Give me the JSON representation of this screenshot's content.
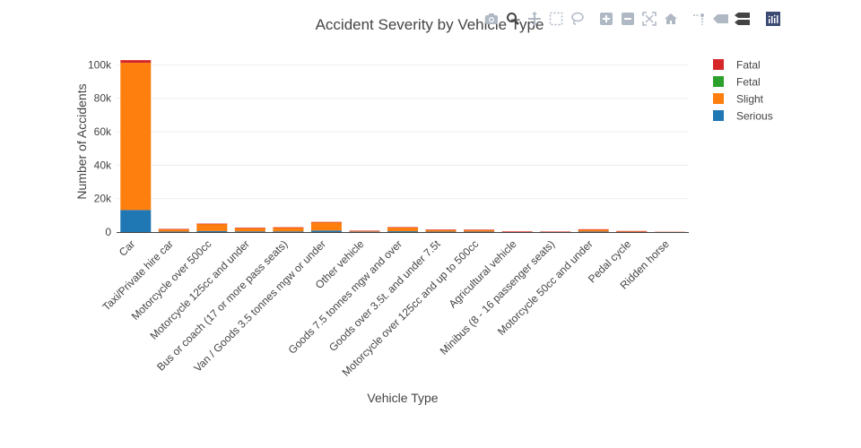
{
  "chart_data": {
    "type": "bar",
    "barmode": "stack",
    "title": "Accident Severity by Vehicle Type",
    "xlabel": "Vehicle Type",
    "ylabel": "Number of Accidents",
    "ylim": [
      0,
      105000
    ],
    "yticks": [
      0,
      20000,
      40000,
      60000,
      80000,
      100000
    ],
    "ytick_labels": [
      "0",
      "20k",
      "40k",
      "60k",
      "80k",
      "100k"
    ],
    "grid": true,
    "legend_position": "top-right",
    "categories": [
      "Car",
      "Taxi/Private hire car",
      "Motorcycle over 500cc",
      "Motorcycle 125cc and under",
      "Bus or coach (17 or more pass seats)",
      "Van / Goods 3.5 tonnes mgw or under",
      "Other vehicle",
      "Goods 7.5 tonnes mgw and over",
      "Goods over 3.5t. and under 7.5t",
      "Motorcycle over 125cc and up to 500cc",
      "Agricultural vehicle",
      "Minibus (8 - 16 passenger seats)",
      "Motorcycle 50cc and under",
      "Pedal cycle",
      "Ridden horse"
    ],
    "series": [
      {
        "name": "Serious",
        "color": "#1f77b4",
        "values": [
          13200,
          300,
          600,
          400,
          400,
          900,
          200,
          500,
          250,
          250,
          80,
          80,
          300,
          100,
          20
        ]
      },
      {
        "name": "Slight",
        "color": "#ff7f0e",
        "values": [
          88000,
          1500,
          4300,
          2100,
          2400,
          5000,
          600,
          2300,
          1000,
          1100,
          250,
          200,
          1200,
          500,
          80
        ]
      },
      {
        "name": "Fetal",
        "color": "#2ca02c",
        "values": [
          0,
          0,
          0,
          0,
          0,
          0,
          0,
          0,
          0,
          0,
          0,
          0,
          0,
          0,
          0
        ]
      },
      {
        "name": "Fatal",
        "color": "#d62728",
        "values": [
          1600,
          50,
          150,
          60,
          60,
          150,
          30,
          150,
          300,
          60,
          20,
          10,
          200,
          10,
          5
        ]
      }
    ],
    "legend_order": [
      "Fatal",
      "Fetal",
      "Slight",
      "Serious"
    ]
  },
  "modebar": {
    "buttons": [
      "camera-icon",
      "zoom-icon",
      "pan-icon",
      "box-select-icon",
      "lasso-select-icon",
      "zoom-in-icon",
      "zoom-out-icon",
      "autoscale-icon",
      "reset-axes-icon",
      "spike-lines-icon",
      "hover-closest-icon",
      "hover-compare-icon",
      "plotly-logo-icon"
    ]
  }
}
